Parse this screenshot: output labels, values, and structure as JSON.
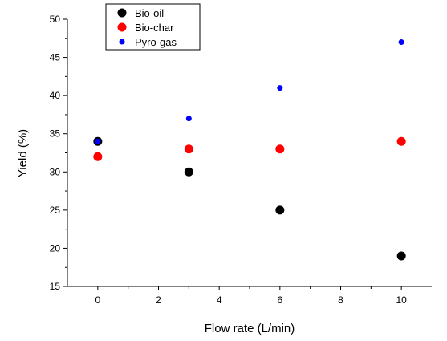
{
  "chart_data": {
    "type": "scatter",
    "title": "",
    "xlabel": "Flow rate (L/min)",
    "ylabel": "Yield (%)",
    "xlim": [
      -1,
      11
    ],
    "ylim": [
      15,
      50
    ],
    "xticks": [
      0,
      2,
      4,
      6,
      8,
      10
    ],
    "yticks": [
      15,
      20,
      25,
      30,
      35,
      40,
      45,
      50
    ],
    "x": [
      0,
      3,
      6,
      10
    ],
    "grid": false,
    "legend_position": "top-left",
    "series": [
      {
        "name": "Bio-oil",
        "color": "#000000",
        "marker_size": "large",
        "values": [
          34,
          30,
          25,
          19
        ]
      },
      {
        "name": "Bio-char",
        "color": "#ff0000",
        "marker_size": "large",
        "values": [
          32,
          33,
          33,
          34
        ]
      },
      {
        "name": "Pyro-gas",
        "color": "#0000ff",
        "marker_size": "small",
        "values": [
          34,
          37,
          41,
          47
        ]
      }
    ]
  }
}
